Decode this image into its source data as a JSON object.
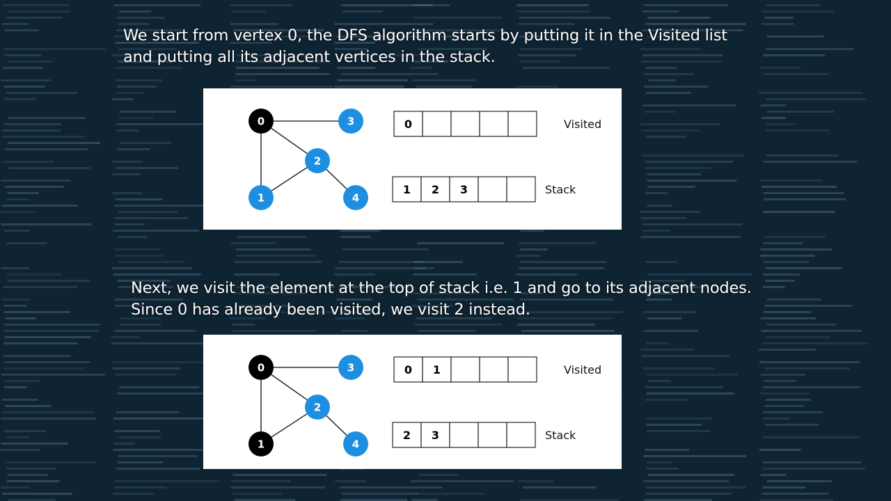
{
  "colors": {
    "background": "#0f2433",
    "code_text": "#5d7a8c",
    "visited_node": "#000000",
    "unvisited_node": "#1e8fe0",
    "edge": "#333333",
    "caption_text": "#ffffff"
  },
  "captions": [
    {
      "lines": [
        "We start from vertex 0, the DFS algorithm starts by putting it in the Visited list",
        "and putting all its adjacent vertices in the stack."
      ]
    },
    {
      "lines": [
        "Next, we visit the element at the top of stack i.e. 1 and go to its adjacent nodes.",
        "Since 0 has already been visited, we visit 2 instead."
      ]
    }
  ],
  "steps": [
    {
      "nodes": [
        {
          "id": "0",
          "state": "visited"
        },
        {
          "id": "3",
          "state": "unvisited"
        },
        {
          "id": "2",
          "state": "unvisited"
        },
        {
          "id": "1",
          "state": "unvisited"
        },
        {
          "id": "4",
          "state": "unvisited"
        }
      ],
      "edges": [
        [
          "0",
          "3"
        ],
        [
          "0",
          "2"
        ],
        [
          "0",
          "1"
        ],
        [
          "1",
          "2"
        ],
        [
          "2",
          "4"
        ]
      ],
      "visited_label": "Visited",
      "visited": [
        "0",
        "",
        "",
        "",
        ""
      ],
      "stack_label": "Stack",
      "stack": [
        "1",
        "2",
        "3",
        "",
        ""
      ]
    },
    {
      "nodes": [
        {
          "id": "0",
          "state": "visited"
        },
        {
          "id": "3",
          "state": "unvisited"
        },
        {
          "id": "2",
          "state": "unvisited"
        },
        {
          "id": "1",
          "state": "visited"
        },
        {
          "id": "4",
          "state": "unvisited"
        }
      ],
      "edges": [
        [
          "0",
          "3"
        ],
        [
          "0",
          "2"
        ],
        [
          "0",
          "1"
        ],
        [
          "1",
          "2"
        ],
        [
          "2",
          "4"
        ]
      ],
      "visited_label": "Visited",
      "visited": [
        "0",
        "1",
        "",
        "",
        ""
      ],
      "stack_label": "Stack",
      "stack": [
        "2",
        "3",
        "",
        "",
        ""
      ]
    }
  ]
}
